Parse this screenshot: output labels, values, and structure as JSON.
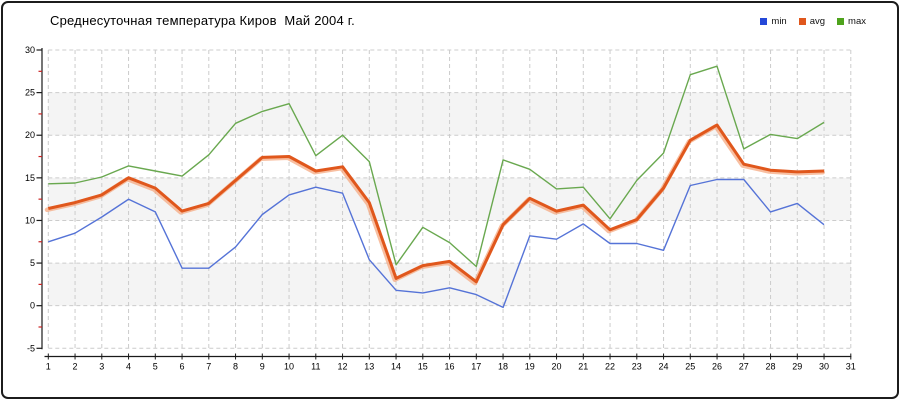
{
  "title": "Среднесуточная температура Киров  Май 2004 г.",
  "chart_data": {
    "type": "line",
    "title": "Среднесуточная температура Киров  Май 2004 г.",
    "xlabel": "",
    "ylabel": "",
    "ylim": [
      -5,
      30
    ],
    "y_ticks": [
      -5,
      0,
      5,
      10,
      15,
      20,
      25,
      30
    ],
    "x_ticks": [
      1,
      2,
      3,
      4,
      5,
      6,
      7,
      8,
      9,
      10,
      11,
      12,
      13,
      14,
      15,
      16,
      17,
      18,
      19,
      20,
      21,
      22,
      23,
      24,
      25,
      26,
      27,
      28,
      29,
      30,
      31
    ],
    "days": [
      1,
      2,
      3,
      4,
      5,
      6,
      7,
      8,
      9,
      10,
      11,
      12,
      13,
      14,
      15,
      16,
      17,
      18,
      19,
      20,
      21,
      22,
      23,
      24,
      25,
      26,
      27,
      28,
      29,
      30
    ],
    "grid": "dashed, horizontal and vertical",
    "legend_position": "top-right",
    "series": [
      {
        "name": "min",
        "color": "#5573d7",
        "legend_color": "#2448d8",
        "values": [
          7.5,
          8.5,
          10.4,
          12.5,
          11.0,
          4.4,
          4.4,
          6.9,
          10.7,
          13.0,
          13.9,
          13.2,
          5.4,
          1.8,
          1.5,
          2.1,
          1.3,
          -0.2,
          8.2,
          7.8,
          9.6,
          7.3,
          7.3,
          6.5,
          14.1,
          14.8,
          14.8,
          11.0,
          12.0,
          9.5
        ]
      },
      {
        "name": "avg",
        "color": "#e0571c",
        "legend_color": "#e0571c",
        "halo_color": "#f5aa82",
        "values": [
          11.4,
          12.1,
          13.0,
          15.0,
          13.8,
          11.1,
          12.0,
          14.7,
          17.4,
          17.5,
          15.8,
          16.3,
          12.1,
          3.2,
          4.7,
          5.2,
          2.8,
          9.5,
          12.6,
          11.1,
          11.8,
          8.9,
          10.1,
          13.8,
          19.4,
          21.2,
          16.6,
          15.9,
          15.7,
          15.8
        ]
      },
      {
        "name": "max",
        "color": "#69a84f",
        "legend_color": "#4ea31c",
        "values": [
          14.3,
          14.4,
          15.1,
          16.4,
          15.8,
          15.2,
          17.7,
          21.4,
          22.8,
          23.7,
          17.6,
          20.0,
          16.9,
          4.8,
          9.2,
          7.4,
          4.6,
          17.1,
          16.0,
          13.7,
          13.9,
          10.2,
          14.7,
          17.9,
          27.1,
          28.1,
          18.4,
          20.1,
          19.6,
          21.5
        ]
      }
    ],
    "style": {
      "band_values": [
        [
          20,
          25
        ],
        [
          10,
          15
        ],
        [
          0,
          5
        ]
      ],
      "band_fill": "#f4f4f4",
      "grid_color": "#cccccc",
      "axis_color": "#1a1a1a",
      "tick_label_color": "#000000",
      "minor_tick_color": "#cc2222",
      "minor_tick_step": 2.5
    }
  }
}
